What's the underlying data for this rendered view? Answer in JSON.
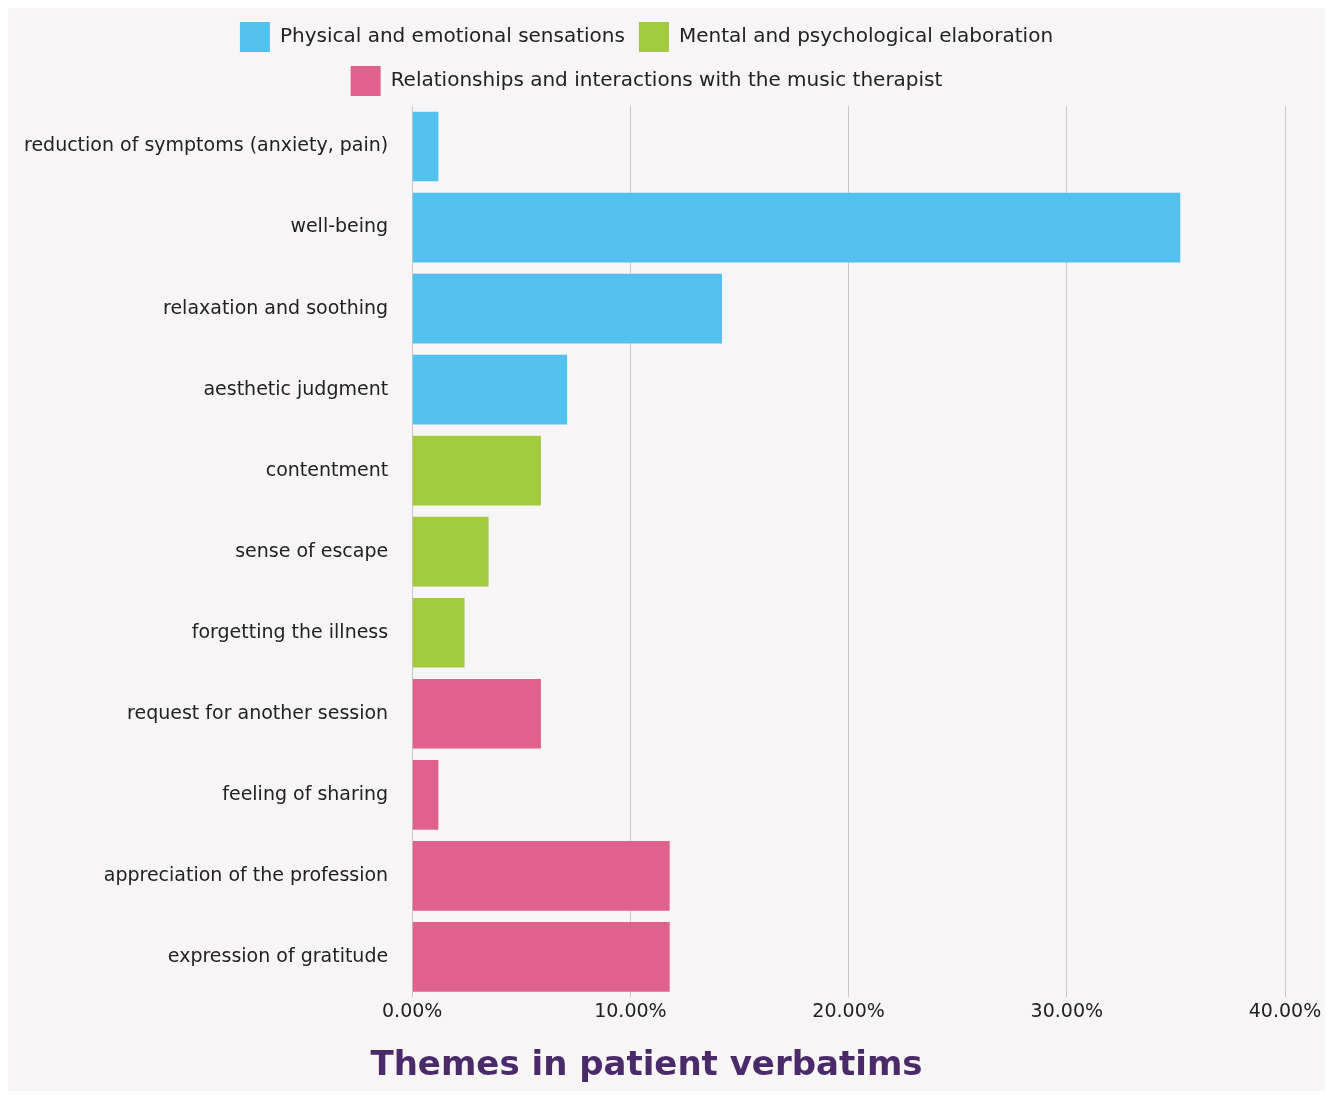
{
  "chart_data": {
    "type": "bar",
    "orientation": "horizontal",
    "title": "Themes in patient verbatims",
    "categories": [
      "reduction of symptoms (anxiety, pain)",
      "well-being",
      "relaxation and soothing",
      "aesthetic judgment",
      "contentment",
      "sense of escape",
      "forgetting the illness",
      "request for another session",
      "feeling of sharing",
      "appreciation of the profession",
      "expression of gratitude"
    ],
    "series": [
      {
        "name": "Physical and emotional sensations",
        "color": "#52c1ee",
        "values": [
          1.2,
          35.2,
          14.2,
          7.1,
          null,
          null,
          null,
          null,
          null,
          null,
          null
        ]
      },
      {
        "name": "Mental and psychological elaboration",
        "color": "#a2ca3e",
        "values": [
          null,
          null,
          null,
          null,
          5.9,
          3.5,
          2.4,
          null,
          null,
          null,
          null
        ]
      },
      {
        "name": "Relationships and interactions with the music therapist",
        "color": "#e0608e",
        "values": [
          null,
          null,
          null,
          null,
          null,
          null,
          null,
          5.9,
          1.2,
          11.8,
          11.8
        ]
      }
    ],
    "xlim": [
      0,
      40
    ],
    "xticks": [
      {
        "value": 0,
        "label": "0.00%"
      },
      {
        "value": 10,
        "label": "10.00%"
      },
      {
        "value": 20,
        "label": "20.00%"
      },
      {
        "value": 30,
        "label": "30.00%"
      },
      {
        "value": 40,
        "label": "40.00%"
      }
    ],
    "grid": "x",
    "legend": "top"
  }
}
